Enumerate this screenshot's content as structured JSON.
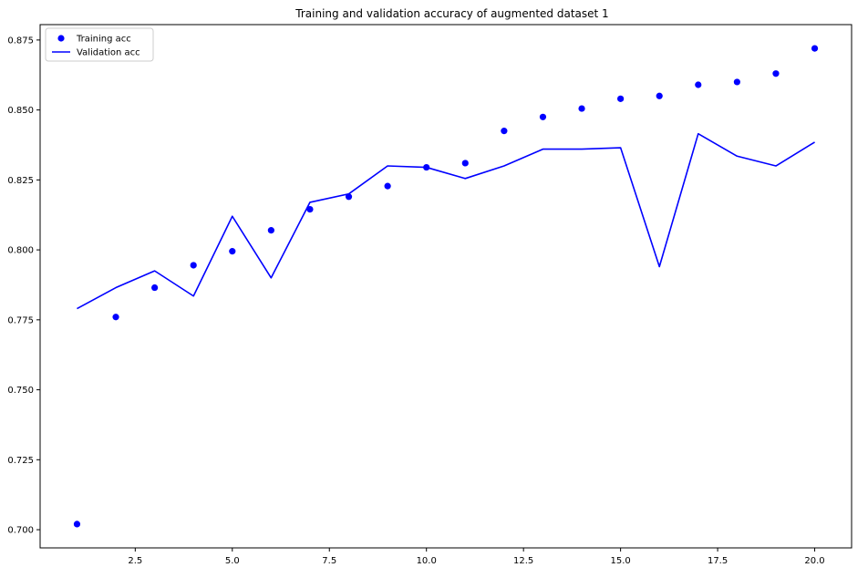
{
  "chart_data": {
    "type": "line",
    "title": "Training and validation accuracy of augmented dataset 1",
    "xlabel": "",
    "ylabel": "",
    "x": [
      1,
      2,
      3,
      4,
      5,
      6,
      7,
      8,
      9,
      10,
      11,
      12,
      13,
      14,
      15,
      16,
      17,
      18,
      19,
      20
    ],
    "xlim": [
      0.05,
      20.95
    ],
    "ylim": [
      0.6935,
      0.8805
    ],
    "xticks": [
      2.5,
      5.0,
      7.5,
      10.0,
      12.5,
      15.0,
      17.5,
      20.0
    ],
    "xtick_labels": [
      "2.5",
      "5.0",
      "7.5",
      "10.0",
      "12.5",
      "15.0",
      "17.5",
      "20.0"
    ],
    "yticks": [
      0.7,
      0.725,
      0.75,
      0.775,
      0.8,
      0.825,
      0.85,
      0.875
    ],
    "ytick_labels": [
      "0.700",
      "0.725",
      "0.750",
      "0.775",
      "0.800",
      "0.825",
      "0.850",
      "0.875"
    ],
    "grid": false,
    "legend_position": "top-left",
    "series": [
      {
        "name": "Training acc",
        "style": "markers",
        "color": "#0000ff",
        "values": [
          0.702,
          0.776,
          0.7865,
          0.7945,
          0.7995,
          0.807,
          0.8145,
          0.819,
          0.8228,
          0.8295,
          0.831,
          0.8425,
          0.8475,
          0.8505,
          0.854,
          0.855,
          0.859,
          0.86,
          0.863,
          0.872
        ]
      },
      {
        "name": "Validation acc",
        "style": "line",
        "color": "#0000ff",
        "values": [
          0.779,
          0.7865,
          0.7925,
          0.7835,
          0.812,
          0.79,
          0.817,
          0.82,
          0.83,
          0.8295,
          0.8255,
          0.83,
          0.836,
          0.836,
          0.8365,
          0.794,
          0.8415,
          0.8335,
          0.83,
          0.8385
        ]
      }
    ]
  }
}
